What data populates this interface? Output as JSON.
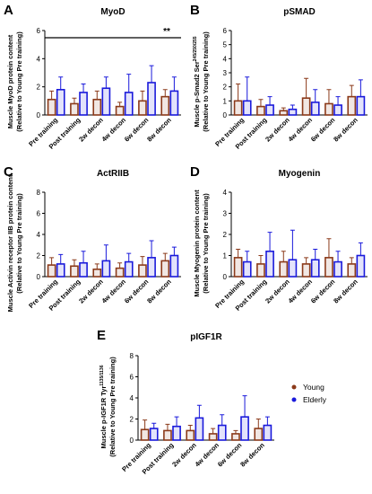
{
  "chart_data": [
    {
      "type": "bar",
      "panel": "A",
      "title": "MyoD",
      "y_label": "Muscle MyoD protein content",
      "y_label_2": "(Relative to Young Pre training)",
      "categories": [
        "Pre training",
        "Post training",
        "2w decon",
        "4w decon",
        "6w decon",
        "8w decon"
      ],
      "series": [
        {
          "name": "Young",
          "color": "#8b3a1a",
          "values": [
            1.1,
            0.8,
            1.1,
            0.6,
            1.0,
            1.3
          ],
          "errors": [
            0.6,
            0.4,
            0.6,
            0.3,
            0.7,
            0.5
          ]
        },
        {
          "name": "Elderly",
          "color": "#1a1adb",
          "values": [
            1.8,
            1.6,
            1.9,
            1.6,
            2.3,
            1.7
          ],
          "errors": [
            0.9,
            0.6,
            0.8,
            1.3,
            1.2,
            1.0
          ]
        }
      ],
      "ylim": [
        0,
        6
      ],
      "yticks": [
        0,
        2,
        4,
        6
      ],
      "annotation": "**"
    },
    {
      "type": "bar",
      "panel": "B",
      "title": "pSMAD",
      "y_label": "Muscle p-Smad2 Ser",
      "y_label_sup": "245/250/255",
      "y_label_2": "(Relative to Young Pre training)",
      "categories": [
        "Pre training",
        "Post training",
        "2w decon",
        "4w decon",
        "6w decon",
        "8w decon"
      ],
      "series": [
        {
          "name": "Young",
          "color": "#8b3a1a",
          "values": [
            1.0,
            0.6,
            0.3,
            1.2,
            0.8,
            1.3
          ],
          "errors": [
            1.2,
            0.5,
            0.2,
            1.4,
            1.0,
            0.8
          ]
        },
        {
          "name": "Elderly",
          "color": "#1a1adb",
          "values": [
            1.0,
            0.7,
            0.4,
            0.9,
            0.7,
            1.3
          ],
          "errors": [
            1.7,
            0.6,
            0.3,
            0.9,
            0.6,
            1.2
          ]
        }
      ],
      "ylim": [
        0,
        6
      ],
      "yticks": [
        0,
        1,
        2,
        3,
        4,
        5,
        6
      ]
    },
    {
      "type": "bar",
      "panel": "C",
      "title": "ActRIIB",
      "y_label": "Muscle Activin receptor IIB protein content",
      "y_label_2": "(Relative to Young Pre training)",
      "categories": [
        "Pre training",
        "Post training",
        "2w decon",
        "4w decon",
        "6w decon",
        "8w decon"
      ],
      "series": [
        {
          "name": "Young",
          "color": "#8b3a1a",
          "values": [
            1.1,
            1.0,
            0.7,
            0.8,
            1.1,
            1.5
          ],
          "errors": [
            0.7,
            0.6,
            0.5,
            0.5,
            0.8,
            0.7
          ]
        },
        {
          "name": "Elderly",
          "color": "#1a1adb",
          "values": [
            1.2,
            1.3,
            1.5,
            1.4,
            1.8,
            2.0
          ],
          "errors": [
            0.9,
            1.1,
            1.5,
            0.8,
            1.6,
            0.8
          ]
        }
      ],
      "ylim": [
        0,
        8
      ],
      "yticks": [
        0,
        2,
        4,
        6,
        8
      ]
    },
    {
      "type": "bar",
      "panel": "D",
      "title": "Myogenin",
      "y_label": "Muscle Myogenin protein content",
      "y_label_2": "(Relative to Young Pre training)",
      "categories": [
        "Pre training",
        "Post training",
        "2w decon",
        "4w decon",
        "6w decon",
        "8w decon"
      ],
      "series": [
        {
          "name": "Young",
          "color": "#8b3a1a",
          "values": [
            0.9,
            0.6,
            0.7,
            0.6,
            0.9,
            0.6
          ],
          "errors": [
            0.4,
            0.4,
            0.5,
            0.3,
            0.9,
            0.3
          ]
        },
        {
          "name": "Elderly",
          "color": "#1a1adb",
          "values": [
            0.7,
            1.2,
            0.8,
            0.8,
            0.7,
            1.0
          ],
          "errors": [
            0.5,
            0.9,
            1.4,
            0.5,
            0.5,
            0.6
          ]
        }
      ],
      "ylim": [
        0,
        4
      ],
      "yticks": [
        0,
        1,
        2,
        3,
        4
      ]
    },
    {
      "type": "bar",
      "panel": "E",
      "title": "pIGF1R",
      "y_label": "Muscle p-IGF1R Tyr",
      "y_label_sup": "1135/1136",
      "y_label_2": "(Relative to Young Pre training)",
      "categories": [
        "Pre training",
        "Post training",
        "2w decon",
        "4w decon",
        "6w decon",
        "8w decon"
      ],
      "series": [
        {
          "name": "Young",
          "color": "#8b3a1a",
          "values": [
            1.0,
            0.9,
            0.9,
            0.6,
            0.6,
            1.1
          ],
          "errors": [
            0.9,
            0.6,
            0.5,
            0.5,
            0.3,
            0.9
          ]
        },
        {
          "name": "Elderly",
          "color": "#1a1adb",
          "values": [
            1.1,
            1.3,
            2.1,
            1.4,
            2.2,
            1.4
          ],
          "errors": [
            0.5,
            0.9,
            1.2,
            1.0,
            2.0,
            0.8
          ]
        }
      ],
      "ylim": [
        0,
        8
      ],
      "yticks": [
        0,
        2,
        4,
        6,
        8
      ],
      "legend": "right"
    }
  ]
}
